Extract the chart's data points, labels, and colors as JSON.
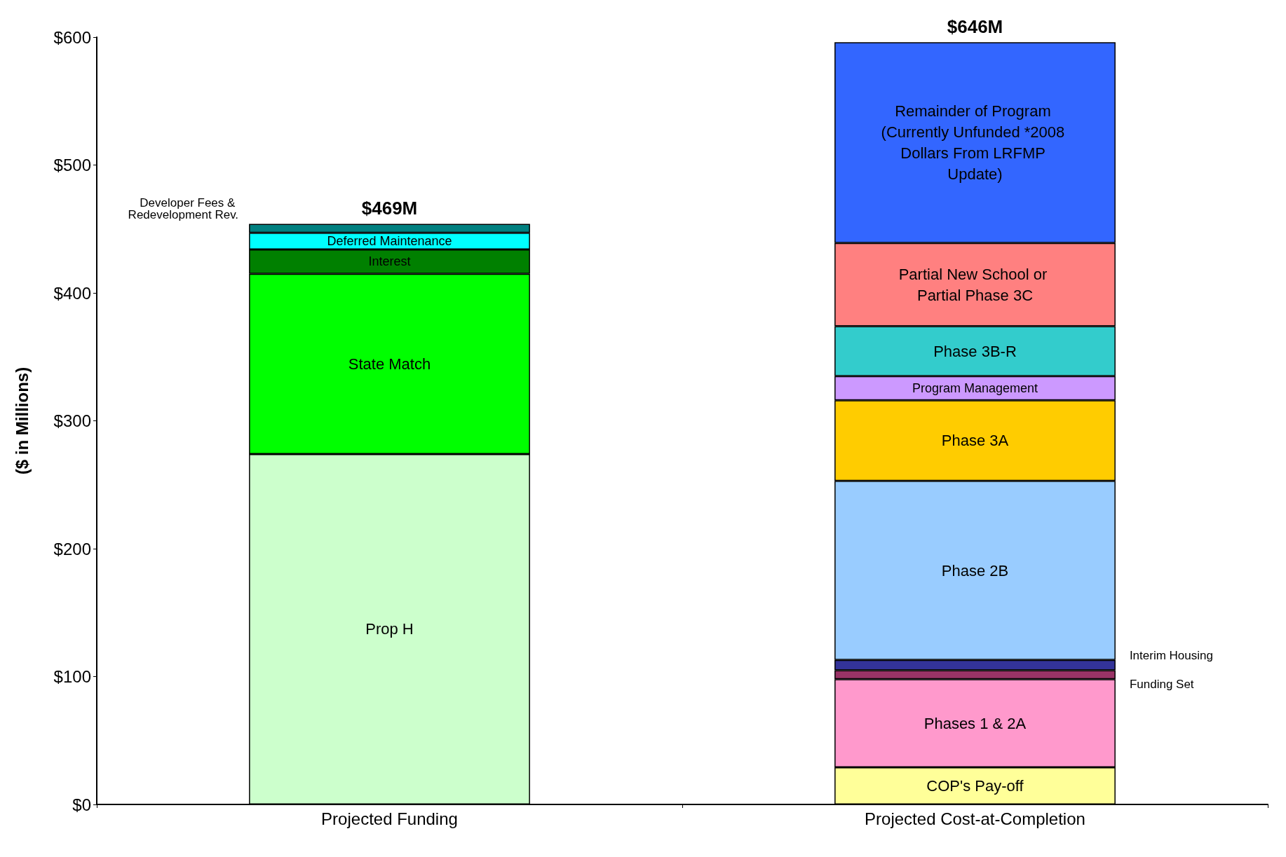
{
  "chart_data": {
    "type": "bar",
    "stacked": true,
    "ylabel": "($ in Millions)",
    "categories": [
      "Projected Funding",
      "Projected Cost-at-Completion"
    ],
    "ylim": [
      0,
      600
    ],
    "yticks": [
      {
        "value": 0,
        "label": "$0"
      },
      {
        "value": 100,
        "label": "$100"
      },
      {
        "value": 200,
        "label": "$200"
      },
      {
        "value": 300,
        "label": "$300"
      },
      {
        "value": 400,
        "label": "$400"
      },
      {
        "value": 500,
        "label": "$500"
      },
      {
        "value": 600,
        "label": "$600"
      }
    ],
    "grid": false,
    "legend": false,
    "annotations": [
      {
        "text": "$469M",
        "x": "Projected Funding",
        "y": 454
      },
      {
        "text": "$646M",
        "x": "Projected Cost-at-Completion",
        "y": 596
      }
    ],
    "series": [
      {
        "name": "Prop H",
        "color": "#ccffcc",
        "values": [
          274,
          null
        ]
      },
      {
        "name": "State Match",
        "color": "#00ff00",
        "values": [
          141,
          null
        ]
      },
      {
        "name": "Interest",
        "color": "#008000",
        "values": [
          19,
          null
        ]
      },
      {
        "name": "Deferred Maintenance",
        "color": "#00ffff",
        "values": [
          13,
          null
        ]
      },
      {
        "name": "Developer Fees & Redevelopment Rev.",
        "color": "#008080",
        "values": [
          7,
          null
        ]
      },
      {
        "name": "COP's Pay-off",
        "color": "#ffff99",
        "values": [
          null,
          29
        ]
      },
      {
        "name": "Phases 1 & 2A",
        "color": "#ff99cc",
        "values": [
          null,
          69
        ]
      },
      {
        "name": "Funding Set",
        "color": "#993366",
        "values": [
          null,
          7
        ]
      },
      {
        "name": "Interim Housing",
        "color": "#333399",
        "values": [
          null,
          8
        ]
      },
      {
        "name": "Phase 2B",
        "color": "#99ccff",
        "values": [
          null,
          140
        ]
      },
      {
        "name": "Phase 3A",
        "color": "#ffcc00",
        "values": [
          null,
          63
        ]
      },
      {
        "name": "Program Management",
        "color": "#cc99ff",
        "values": [
          null,
          19
        ]
      },
      {
        "name": "Phase 3B-R",
        "color": "#33cccc",
        "values": [
          null,
          39
        ]
      },
      {
        "name": "Partial New School or Partial Phase 3C",
        "color": "#ff8080",
        "values": [
          null,
          65
        ]
      },
      {
        "name": "Remainder of Program (Currently Unfunded *2008 Dollars From LRFMP Update)",
        "color": "#3366ff",
        "values": [
          null,
          157
        ]
      }
    ]
  }
}
